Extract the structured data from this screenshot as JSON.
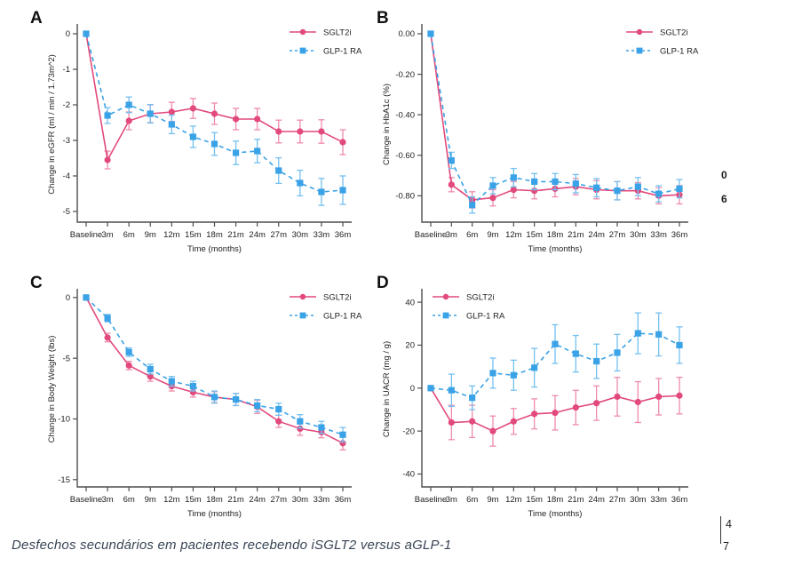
{
  "page": {
    "caption": "Desfechos secundários em pacientes recebendo iSGLT2 versus aGLP-1",
    "edge_fragments": [
      "0",
      "6"
    ],
    "page_marker": [
      "4",
      "7"
    ]
  },
  "colors": {
    "sglt2i": "#e2497c",
    "sglt2i_error": "#ef8bab",
    "glp1": "#3aa2e6",
    "glp1_error": "#74c0f0",
    "axis": "#4d4d4d",
    "text": "#222222",
    "caption_text": "#394555"
  },
  "legend_labels": [
    "SGLT2i",
    "GLP-1 RA"
  ],
  "chart_data": [
    {
      "id": "A",
      "panel_label": "A",
      "type": "line",
      "title": "",
      "xlabel": "Time (months)",
      "ylabel": "Change in eGFR (ml / min / 1.73m^2)",
      "categories": [
        "Baseline",
        "3m",
        "6m",
        "9m",
        "12m",
        "15m",
        "18m",
        "21m",
        "24m",
        "27m",
        "30m",
        "33m",
        "36m"
      ],
      "ytick_values": [
        0,
        -1,
        -2,
        -3,
        -4,
        -5
      ],
      "ytick_labels": [
        "0",
        "-1",
        "-2",
        "-3",
        "-4",
        "-5"
      ],
      "ylim": [
        -5.3,
        0.2
      ],
      "legend_pos": "top-right",
      "grid": false,
      "series": [
        {
          "name": "SGLT2i",
          "style": "solid",
          "marker": "circle",
          "values": [
            0,
            -3.55,
            -2.45,
            -2.25,
            -2.2,
            -2.1,
            -2.25,
            -2.4,
            -2.4,
            -2.75,
            -2.75,
            -2.75,
            -3.05
          ],
          "errors": [
            0,
            0.25,
            0.25,
            0.25,
            0.27,
            0.28,
            0.3,
            0.3,
            0.3,
            0.32,
            0.32,
            0.33,
            0.35
          ]
        },
        {
          "name": "GLP-1 RA",
          "style": "dashed",
          "marker": "square",
          "values": [
            0,
            -2.3,
            -2.0,
            -2.25,
            -2.55,
            -2.9,
            -3.1,
            -3.35,
            -3.3,
            -3.85,
            -4.2,
            -4.45,
            -4.4
          ],
          "errors": [
            0,
            0.22,
            0.22,
            0.26,
            0.26,
            0.3,
            0.32,
            0.33,
            0.33,
            0.36,
            0.36,
            0.38,
            0.4
          ]
        }
      ]
    },
    {
      "id": "B",
      "panel_label": "B",
      "type": "line",
      "title": "",
      "xlabel": "Time (months)",
      "ylabel": "Change in HbA1c (%)",
      "categories": [
        "Baseline",
        "3m",
        "6m",
        "9m",
        "12m",
        "15m",
        "18m",
        "21m",
        "24m",
        "27m",
        "30m",
        "33m",
        "36m"
      ],
      "ytick_values": [
        0,
        -0.2,
        -0.4,
        -0.6,
        -0.8
      ],
      "ytick_labels": [
        "0.00",
        "-0.20",
        "-0.40",
        "-0.60",
        "-0.80"
      ],
      "ylim": [
        -0.93,
        0.035
      ],
      "legend_pos": "top-right",
      "grid": false,
      "series": [
        {
          "name": "SGLT2i",
          "style": "solid",
          "marker": "circle",
          "values": [
            0,
            -0.745,
            -0.82,
            -0.81,
            -0.77,
            -0.775,
            -0.765,
            -0.755,
            -0.77,
            -0.775,
            -0.775,
            -0.8,
            -0.795
          ],
          "errors": [
            0,
            0.035,
            0.04,
            0.04,
            0.04,
            0.04,
            0.04,
            0.04,
            0.045,
            0.045,
            0.04,
            0.04,
            0.045
          ]
        },
        {
          "name": "GLP-1 RA",
          "style": "dashed",
          "marker": "square",
          "values": [
            0,
            -0.625,
            -0.845,
            -0.75,
            -0.71,
            -0.73,
            -0.73,
            -0.74,
            -0.76,
            -0.775,
            -0.755,
            -0.79,
            -0.765
          ],
          "errors": [
            0,
            0.04,
            0.04,
            0.04,
            0.045,
            0.04,
            0.04,
            0.045,
            0.045,
            0.045,
            0.045,
            0.04,
            0.045
          ]
        }
      ]
    },
    {
      "id": "C",
      "panel_label": "C",
      "type": "line",
      "title": "",
      "xlabel": "Time (months)",
      "ylabel": "Change in Body Weight (lbs)",
      "categories": [
        "Baseline",
        "3m",
        "6m",
        "9m",
        "12m",
        "15m",
        "18m",
        "21m",
        "24m",
        "27m",
        "30m",
        "33m",
        "36m"
      ],
      "ytick_values": [
        0,
        -5,
        -10,
        -15
      ],
      "ytick_labels": [
        "0",
        "-5",
        "-10",
        "-15"
      ],
      "ylim": [
        -15.6,
        0.5
      ],
      "legend_pos": "top-right",
      "grid": false,
      "series": [
        {
          "name": "SGLT2i",
          "style": "solid",
          "marker": "circle",
          "values": [
            0,
            -3.3,
            -5.6,
            -6.5,
            -7.3,
            -7.8,
            -8.2,
            -8.4,
            -9.0,
            -10.2,
            -10.8,
            -11.1,
            -12.0
          ],
          "errors": [
            0,
            0.35,
            0.35,
            0.4,
            0.4,
            0.4,
            0.45,
            0.5,
            0.55,
            0.5,
            0.55,
            0.45,
            0.55
          ]
        },
        {
          "name": "GLP-1 RA",
          "style": "dashed",
          "marker": "square",
          "values": [
            0,
            -1.7,
            -4.5,
            -5.9,
            -6.9,
            -7.3,
            -8.2,
            -8.4,
            -8.9,
            -9.2,
            -10.2,
            -10.7,
            -11.3
          ],
          "errors": [
            0,
            0.3,
            0.35,
            0.4,
            0.4,
            0.4,
            0.5,
            0.5,
            0.5,
            0.5,
            0.55,
            0.5,
            0.6
          ]
        }
      ]
    },
    {
      "id": "D",
      "panel_label": "D",
      "type": "line",
      "title": "",
      "xlabel": "Time (months)",
      "ylabel": "Change in UACR (mg / g)",
      "categories": [
        "Baseline",
        "3m",
        "6m",
        "9m",
        "12m",
        "15m",
        "18m",
        "21m",
        "24m",
        "27m",
        "30m",
        "33m",
        "36m"
      ],
      "ytick_values": [
        40,
        20,
        0,
        -20,
        -40
      ],
      "ytick_labels": [
        "40",
        "20",
        "0",
        "-20",
        "-40"
      ],
      "ylim": [
        -46,
        45
      ],
      "legend_pos": "top-left",
      "grid": false,
      "series": [
        {
          "name": "SGLT2i",
          "style": "solid",
          "marker": "circle",
          "values": [
            0,
            -16,
            -15.5,
            -20,
            -15.5,
            -12,
            -11.5,
            -9,
            -7,
            -4,
            -6.5,
            -4,
            -3.5
          ],
          "errors": [
            0,
            8,
            7.5,
            7,
            6,
            7,
            8,
            8,
            8,
            9,
            9.5,
            8.5,
            8.5
          ]
        },
        {
          "name": "GLP-1 RA",
          "style": "dashed",
          "marker": "square",
          "values": [
            0,
            -1,
            -4.5,
            7,
            6,
            9.5,
            20.5,
            16,
            12.5,
            16.5,
            25.5,
            25,
            20
          ],
          "errors": [
            0,
            7.5,
            5.5,
            7,
            7,
            9,
            9,
            8.5,
            8,
            8.5,
            9.5,
            10,
            8.5
          ]
        }
      ]
    }
  ]
}
